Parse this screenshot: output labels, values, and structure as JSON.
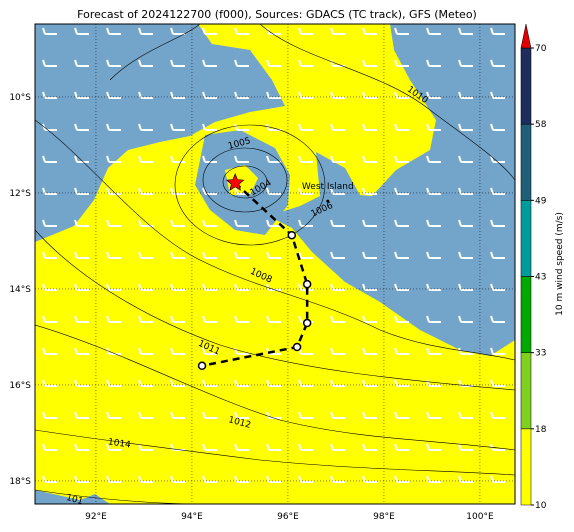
{
  "title": "Forecast of 2024122700 (f000), Sources: GDACS (TC track), GFS (Meteo)",
  "map": {
    "xlim": [
      90.73,
      100.73
    ],
    "ylim": [
      -18.48,
      -8.48
    ],
    "xticks": [
      {
        "value": 92,
        "label": "92°E"
      },
      {
        "value": 94,
        "label": "94°E"
      },
      {
        "value": 96,
        "label": "96°E"
      },
      {
        "value": 98,
        "label": "98°E"
      },
      {
        "value": 100,
        "label": "100°E"
      }
    ],
    "yticks": [
      {
        "value": -10,
        "label": "10°S"
      },
      {
        "value": -12,
        "label": "12°S"
      },
      {
        "value": -14,
        "label": "14°S"
      },
      {
        "value": -16,
        "label": "16°S"
      },
      {
        "value": -18,
        "label": "18°S"
      }
    ],
    "grid": true,
    "track": {
      "color": "#000000",
      "lon": [
        94.9,
        96.08,
        96.4,
        96.4,
        96.19,
        94.21
      ],
      "lat": [
        -11.79,
        -12.88,
        -13.9,
        -14.71,
        -15.21,
        -15.6
      ]
    },
    "place": {
      "name": "West Island",
      "lon": 96.83,
      "lat": -12.17
    },
    "contour_labels": [
      "1010",
      "1005",
      "1004",
      "1006",
      "1008",
      "1011",
      "1012",
      "1014",
      "101"
    ]
  },
  "colorbar": {
    "label": "10 m wind speed (m/s)",
    "ticks": [
      10,
      18,
      33,
      43,
      49,
      58,
      70
    ],
    "colors": [
      "#ffff00",
      "#80d020",
      "#00a800",
      "#009c9c",
      "#1e6078",
      "#1c2d5e"
    ],
    "extend_color": "#e00000"
  }
}
